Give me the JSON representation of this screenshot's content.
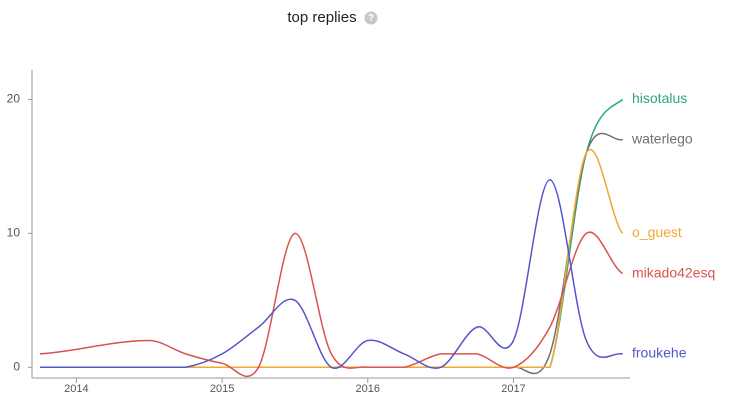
{
  "chart_data": {
    "type": "line",
    "title": "top replies",
    "x": [
      2013.75,
      2014.5,
      2014.75,
      2015,
      2015.25,
      2015.5,
      2015.75,
      2016,
      2016.25,
      2016.5,
      2016.75,
      2017,
      2017.25,
      2017.5,
      2017.75
    ],
    "series": [
      {
        "name": "hisotalus",
        "color": "#2ca87a",
        "values": [
          0,
          0,
          0,
          0,
          0,
          0,
          0,
          0,
          0,
          0,
          0,
          0,
          0,
          16,
          20
        ]
      },
      {
        "name": "waterlego",
        "color": "#707070",
        "values": [
          0,
          0,
          0,
          0,
          0,
          0,
          0,
          0,
          0,
          0,
          0,
          0,
          1,
          16,
          17
        ]
      },
      {
        "name": "o_guest",
        "color": "#f0a830",
        "values": [
          0,
          0,
          0,
          0,
          0,
          0,
          0,
          0,
          0,
          0,
          0,
          0,
          0,
          16,
          10
        ]
      },
      {
        "name": "mikado42esq",
        "color": "#d9534f",
        "values": [
          1,
          2,
          1,
          0.3,
          0,
          10,
          1,
          0,
          0,
          1,
          1,
          0,
          3,
          10,
          7
        ]
      },
      {
        "name": "froukehe",
        "color": "#5555cc",
        "values": [
          0,
          0,
          0,
          1,
          3,
          5,
          0,
          2,
          1,
          0,
          3,
          2,
          14,
          2,
          1
        ]
      }
    ],
    "xlim": [
      2013.75,
      2017.8
    ],
    "xticks": [
      2014,
      2015,
      2016,
      2017
    ],
    "ylim": [
      -0.8,
      22.2
    ],
    "yticks": [
      0,
      10,
      20
    ]
  }
}
